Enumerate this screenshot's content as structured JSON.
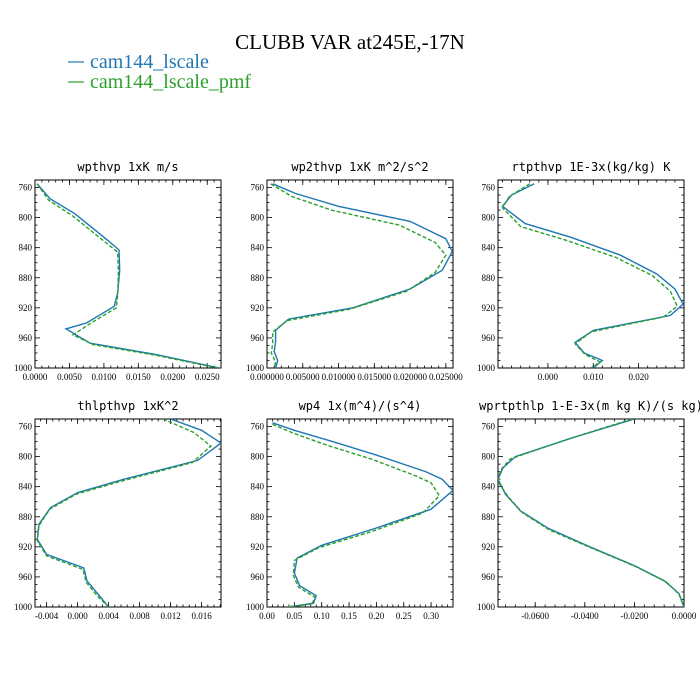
{
  "figure": {
    "title": "CLUBB VAR at245E,-17N",
    "legend": [
      {
        "label": "cam144_lscale",
        "color": "#1f77b4",
        "dash": "solid"
      },
      {
        "label": "cam144_lscale_pmf",
        "color": "#2ca02c",
        "dash": "dashed"
      }
    ]
  },
  "chart_data": [
    {
      "type": "line",
      "title": "wpthvp  1xK m/s",
      "xlim": [
        0,
        0.027
      ],
      "ylim": [
        1000,
        750
      ],
      "xticks": [
        0,
        0.005,
        0.01,
        0.015,
        0.02,
        0.025
      ],
      "xtick_labels": [
        "0.0000",
        "0.0050",
        "0.0100",
        "0.0150",
        "0.0200",
        "0.0250"
      ],
      "yticks": [
        760,
        800,
        840,
        880,
        920,
        960,
        1000
      ],
      "ytick_labels": [
        "760",
        "800",
        "840",
        "880",
        "920",
        "960",
        "1000"
      ],
      "series": [
        {
          "name": "cam144_lscale",
          "color": "#1f77b4",
          "x": [
            0.0003,
            0.0022,
            0.0058,
            0.01,
            0.0122,
            0.0123,
            0.012,
            0.0115,
            0.0075,
            0.0045,
            0.008,
            0.0175,
            0.0268
          ],
          "y": [
            755,
            775,
            795,
            826,
            843,
            870,
            900,
            918,
            940,
            948,
            967,
            982,
            1000
          ]
        },
        {
          "name": "cam144_lscale_pmf",
          "color": "#2ca02c",
          "x": [
            0.0003,
            0.002,
            0.0055,
            0.0097,
            0.012,
            0.0121,
            0.012,
            0.0118,
            0.008,
            0.0055,
            0.0085,
            0.0175,
            0.0265
          ],
          "y": [
            755,
            777,
            798,
            829,
            846,
            872,
            902,
            920,
            941,
            956,
            969,
            983,
            1000
          ]
        }
      ]
    },
    {
      "type": "line",
      "title": "wp2thvp  1xK m^2/s^2",
      "xlim": [
        0,
        0.026
      ],
      "ylim": [
        1000,
        750
      ],
      "xticks": [
        0,
        0.005,
        0.01,
        0.015,
        0.02,
        0.025
      ],
      "xtick_labels": [
        "0.000000",
        "0.005000",
        "0.010000",
        "0.015000",
        "0.020000",
        "0.025000"
      ],
      "yticks": [
        760,
        800,
        840,
        880,
        920,
        960,
        1000
      ],
      "ytick_labels": [
        "760",
        "800",
        "840",
        "880",
        "920",
        "960",
        "1000"
      ],
      "series": [
        {
          "name": "cam144_lscale",
          "color": "#1f77b4",
          "x": [
            0.0008,
            0.004,
            0.01,
            0.02,
            0.025,
            0.0259,
            0.0245,
            0.02,
            0.012,
            0.003,
            0.0012,
            0.0012,
            0.001,
            0.0015,
            0.0012
          ],
          "y": [
            755,
            768,
            785,
            805,
            828,
            845,
            870,
            895,
            920,
            935,
            950,
            965,
            978,
            990,
            1000
          ]
        },
        {
          "name": "cam144_lscale_pmf",
          "color": "#2ca02c",
          "x": [
            0.0005,
            0.0035,
            0.009,
            0.0185,
            0.0235,
            0.025,
            0.0235,
            0.0195,
            0.0115,
            0.0028,
            0.0008,
            0.0008,
            0.0006,
            0.0012,
            0.001
          ],
          "y": [
            755,
            772,
            790,
            810,
            833,
            850,
            873,
            898,
            922,
            937,
            952,
            967,
            980,
            992,
            1000
          ]
        }
      ]
    },
    {
      "type": "line",
      "title": "rtpthvp  1E-3x(kg/kg) K",
      "xlim": [
        -0.011,
        0.03
      ],
      "ylim": [
        1000,
        750
      ],
      "xticks": [
        0,
        0.01,
        0.02
      ],
      "xtick_labels": [
        "0.000",
        "0.010",
        "0.020"
      ],
      "yticks": [
        760,
        800,
        840,
        880,
        920,
        960,
        1000
      ],
      "ytick_labels": [
        "760",
        "800",
        "840",
        "880",
        "920",
        "960",
        "1000"
      ],
      "series": [
        {
          "name": "cam144_lscale",
          "color": "#1f77b4",
          "x": [
            -0.003,
            -0.008,
            -0.01,
            -0.005,
            0.005,
            0.016,
            0.024,
            0.028,
            0.0298,
            0.027,
            0.01,
            0.006,
            0.008,
            0.012,
            0.01
          ],
          "y": [
            755,
            770,
            785,
            808,
            826,
            850,
            875,
            895,
            915,
            930,
            950,
            966,
            980,
            990,
            1000
          ]
        },
        {
          "name": "cam144_lscale_pmf",
          "color": "#2ca02c",
          "x": [
            -0.004,
            -0.0085,
            -0.01,
            -0.006,
            0.004,
            0.015,
            0.023,
            0.027,
            0.0285,
            0.0255,
            0.0095,
            0.006,
            0.0082,
            0.0115,
            0.0095
          ],
          "y": [
            755,
            772,
            787,
            812,
            830,
            853,
            877,
            898,
            918,
            932,
            952,
            968,
            982,
            992,
            1000
          ]
        }
      ]
    },
    {
      "type": "line",
      "title": "thlpthvp  1xK^2",
      "xlim": [
        -0.0055,
        0.0185
      ],
      "ylim": [
        1000,
        750
      ],
      "xticks": [
        -0.004,
        0,
        0.004,
        0.008,
        0.012,
        0.016
      ],
      "xtick_labels": [
        "-0.004",
        "0.000",
        "0.004",
        "0.008",
        "0.012",
        "0.016"
      ],
      "yticks": [
        760,
        800,
        840,
        880,
        920,
        960,
        1000
      ],
      "ytick_labels": [
        "760",
        "800",
        "840",
        "880",
        "920",
        "960",
        "1000"
      ],
      "series": [
        {
          "name": "cam144_lscale",
          "color": "#1f77b4",
          "x": [
            0.012,
            0.016,
            0.0185,
            0.0155,
            0.006,
            0.0,
            -0.0035,
            -0.005,
            -0.0052,
            -0.004,
            0.0008,
            0.0012,
            0.0028,
            0.004
          ],
          "y": [
            750,
            765,
            782,
            805,
            830,
            848,
            868,
            890,
            910,
            930,
            948,
            965,
            985,
            1000
          ]
        },
        {
          "name": "cam144_lscale_pmf",
          "color": "#2ca02c",
          "x": [
            0.011,
            0.015,
            0.0172,
            0.0148,
            0.0055,
            -0.0002,
            -0.0036,
            -0.005,
            -0.0052,
            -0.004,
            0.0007,
            0.0011,
            0.0027,
            0.004
          ],
          "y": [
            750,
            768,
            786,
            808,
            833,
            850,
            870,
            892,
            912,
            932,
            950,
            967,
            987,
            1000
          ]
        }
      ]
    },
    {
      "type": "line",
      "title": "wp4  1x(m^4)/(s^4)",
      "xlim": [
        0,
        0.34
      ],
      "ylim": [
        1000,
        750
      ],
      "xticks": [
        0,
        0.05,
        0.1,
        0.15,
        0.2,
        0.25,
        0.3
      ],
      "xtick_labels": [
        "0.00",
        "0.05",
        "0.10",
        "0.15",
        "0.20",
        "0.25",
        "0.30"
      ],
      "yticks": [
        760,
        800,
        840,
        880,
        920,
        960,
        1000
      ],
      "ytick_labels": [
        "760",
        "800",
        "840",
        "880",
        "920",
        "960",
        "1000"
      ],
      "series": [
        {
          "name": "cam144_lscale",
          "color": "#1f77b4",
          "x": [
            0.01,
            0.05,
            0.12,
            0.2,
            0.29,
            0.32,
            0.34,
            0.3,
            0.2,
            0.1,
            0.055,
            0.05,
            0.06,
            0.09,
            0.085,
            0.04
          ],
          "y": [
            755,
            765,
            780,
            798,
            820,
            830,
            845,
            870,
            895,
            918,
            935,
            955,
            972,
            985,
            995,
            1000
          ]
        },
        {
          "name": "cam144_lscale_pmf",
          "color": "#2ca02c",
          "x": [
            0.01,
            0.045,
            0.11,
            0.19,
            0.27,
            0.3,
            0.315,
            0.285,
            0.19,
            0.095,
            0.05,
            0.048,
            0.058,
            0.088,
            0.082,
            0.035
          ],
          "y": [
            757,
            768,
            785,
            803,
            825,
            835,
            852,
            875,
            900,
            921,
            938,
            958,
            974,
            987,
            996,
            1000
          ]
        }
      ]
    },
    {
      "type": "line",
      "title": "wprtpthlp  1-E-3x(m kg K)/(s kg)",
      "xlim": [
        -0.075,
        0.0
      ],
      "ylim": [
        1000,
        750
      ],
      "xticks": [
        -0.06,
        -0.04,
        -0.02,
        0
      ],
      "xtick_labels": [
        "-0.0600",
        "-0.0400",
        "-0.0200",
        "0.0000"
      ],
      "yticks": [
        760,
        800,
        840,
        880,
        920,
        960,
        1000
      ],
      "ytick_labels": [
        "760",
        "800",
        "840",
        "880",
        "920",
        "960",
        "1000"
      ],
      "series": [
        {
          "name": "cam144_lscale",
          "color": "#1f77b4",
          "x": [
            -0.02,
            -0.045,
            -0.068,
            -0.073,
            -0.075,
            -0.072,
            -0.066,
            -0.055,
            -0.038,
            -0.02,
            -0.008,
            -0.002,
            0.0
          ],
          "y": [
            750,
            775,
            800,
            815,
            830,
            850,
            872,
            895,
            920,
            945,
            965,
            982,
            1000
          ]
        },
        {
          "name": "cam144_lscale_pmf",
          "color": "#2ca02c",
          "x": [
            -0.021,
            -0.048,
            -0.07,
            -0.074,
            -0.075,
            -0.071,
            -0.065,
            -0.054,
            -0.037,
            -0.019,
            -0.007,
            -0.002,
            0.0
          ],
          "y": [
            750,
            778,
            803,
            818,
            833,
            853,
            875,
            898,
            922,
            947,
            967,
            983,
            1000
          ]
        }
      ]
    }
  ]
}
